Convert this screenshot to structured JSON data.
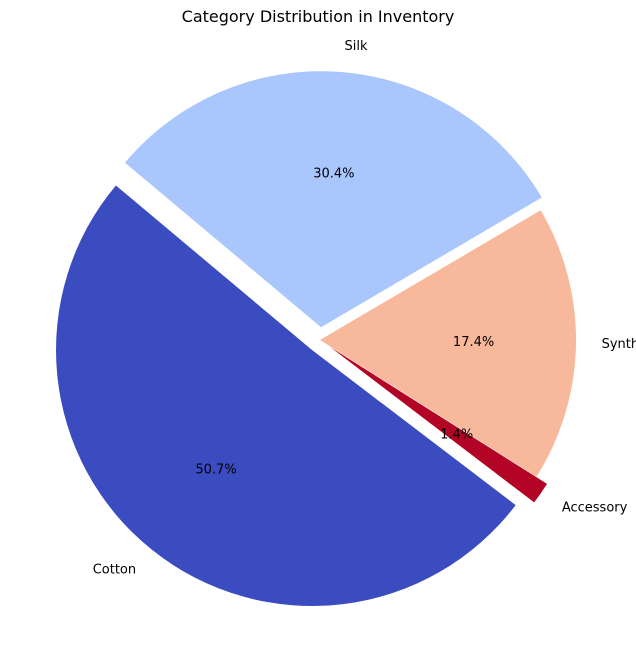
{
  "chart_data": {
    "type": "pie",
    "title": "Category Distribution in Inventory",
    "slices": [
      {
        "label": "Cotton",
        "value": 50.7,
        "pct_label": "50.7%",
        "color": "#3b4cc0",
        "explode": true
      },
      {
        "label": "Accessory",
        "value": 1.4,
        "pct_label": "1.4%",
        "color": "#b40426",
        "explode": true
      },
      {
        "label": "Synthetic",
        "value": 17.4,
        "pct_label": "17.4%",
        "color": "#f7b89c",
        "explode": false
      },
      {
        "label": "Silk",
        "value": 30.4,
        "pct_label": "30.4%",
        "color": "#aac7fd",
        "explode": true
      }
    ],
    "start_angle_deg": 140,
    "direction": "counterclockwise"
  }
}
